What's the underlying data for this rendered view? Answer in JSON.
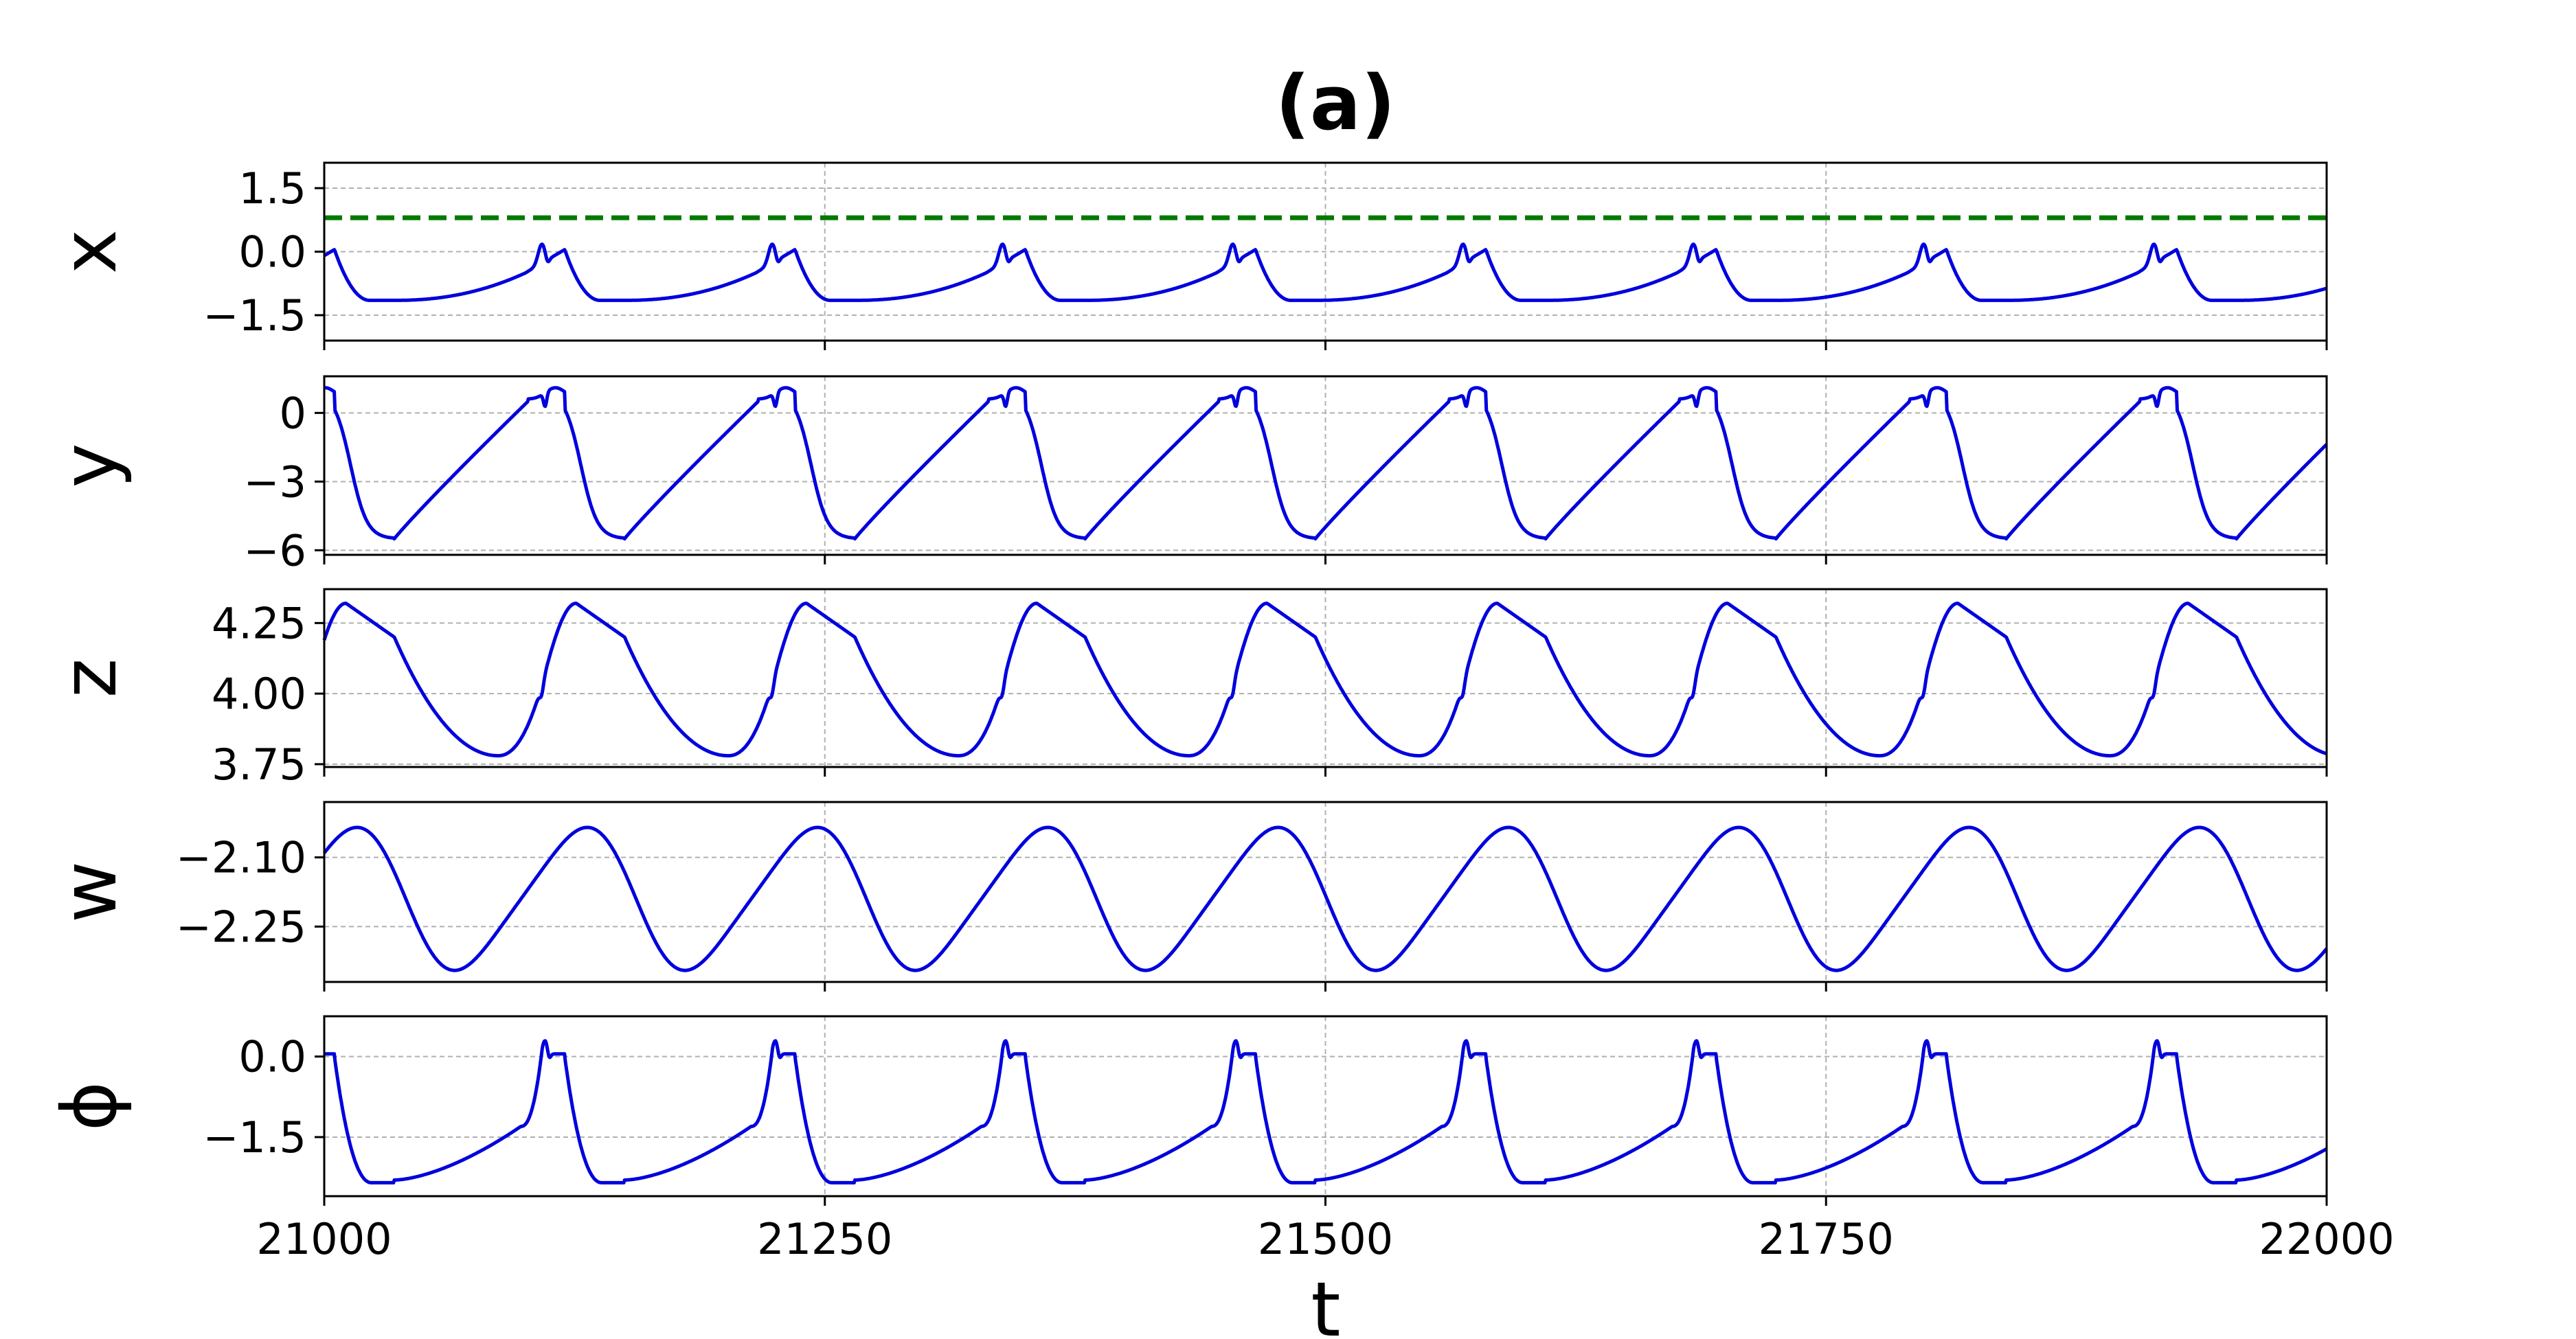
{
  "chart_data": [
    {
      "type": "line",
      "title": "(a)",
      "xlabel": "",
      "ylabel": "x",
      "xlim": [
        21000,
        22000
      ],
      "ylim": [
        -2.1,
        2.1
      ],
      "yticks": [
        -1.5,
        0.0,
        1.5
      ],
      "ytick_labels": [
        "−1.5",
        "0.0",
        "1.5"
      ],
      "xticks": [
        21000,
        21250,
        21500,
        21750,
        22000
      ],
      "grid": true,
      "threshold": {
        "y": 0.8,
        "color": "#007a00",
        "style": "dashed"
      },
      "period": 115,
      "t0": 21035,
      "series": [
        {
          "color": "#0000dd"
        }
      ]
    },
    {
      "type": "line",
      "xlabel": "",
      "ylabel": "y",
      "xlim": [
        21000,
        22000
      ],
      "ylim": [
        -6.2,
        1.6
      ],
      "yticks": [
        -6,
        -3,
        0
      ],
      "ytick_labels": [
        "−6",
        "−3",
        "0"
      ],
      "xticks": [
        21000,
        21250,
        21500,
        21750,
        22000
      ],
      "grid": true,
      "period": 115,
      "t0": 21035,
      "series": [
        {
          "color": "#0000dd"
        }
      ]
    },
    {
      "type": "line",
      "xlabel": "",
      "ylabel": "z",
      "xlim": [
        21000,
        22000
      ],
      "ylim": [
        3.74,
        4.37
      ],
      "yticks": [
        3.75,
        4.0,
        4.25
      ],
      "ytick_labels": [
        "3.75",
        "4.00",
        "4.25"
      ],
      "xticks": [
        21000,
        21250,
        21500,
        21750,
        22000
      ],
      "grid": true,
      "period": 115,
      "t0": 21035,
      "series": [
        {
          "color": "#0000dd"
        }
      ]
    },
    {
      "type": "line",
      "xlabel": "",
      "ylabel": "w",
      "xlim": [
        21000,
        22000
      ],
      "ylim": [
        -2.37,
        -1.98
      ],
      "yticks": [
        -2.25,
        -2.1
      ],
      "ytick_labels": [
        "−2.25",
        "−2.10"
      ],
      "xticks": [
        21000,
        21250,
        21500,
        21750,
        22000
      ],
      "grid": true,
      "period": 115,
      "t0": 21035,
      "series": [
        {
          "color": "#0000dd"
        }
      ]
    },
    {
      "type": "line",
      "xlabel": "t",
      "ylabel": "ϕ",
      "xlim": [
        21000,
        22000
      ],
      "ylim": [
        -2.6,
        0.75
      ],
      "yticks": [
        -1.5,
        0.0
      ],
      "ytick_labels": [
        "−1.5",
        "0.0"
      ],
      "xticks": [
        21000,
        21250,
        21500,
        21750,
        22000
      ],
      "xtick_labels": [
        "21000",
        "21250",
        "21500",
        "21750",
        "22000"
      ],
      "grid": true,
      "period": 115,
      "t0": 21035,
      "series": [
        {
          "color": "#0000dd"
        }
      ]
    }
  ]
}
